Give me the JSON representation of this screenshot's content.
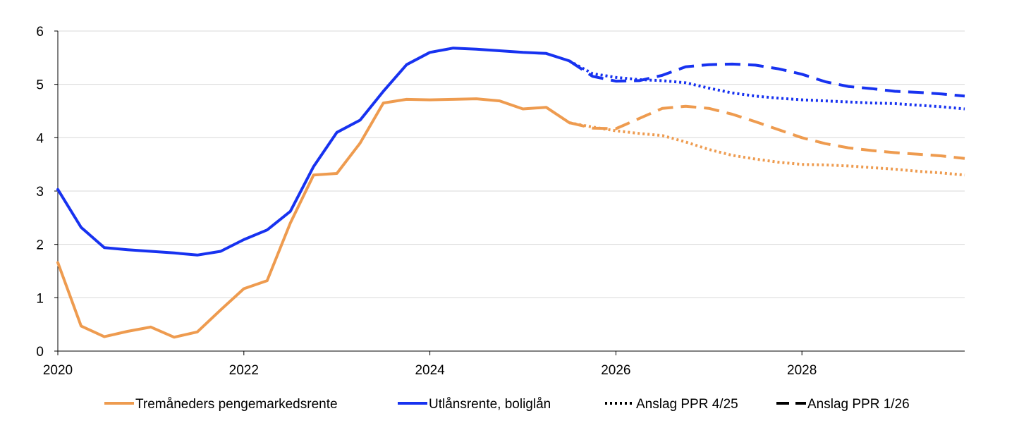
{
  "chart_data": {
    "type": "line",
    "title": "",
    "xlabel": "",
    "ylabel": "",
    "xlim": [
      2020,
      2029.75
    ],
    "ylim": [
      0,
      6
    ],
    "yticks": [
      0,
      1,
      2,
      3,
      4,
      5,
      6
    ],
    "xticks": [
      2020,
      2022,
      2024,
      2026,
      2028
    ],
    "grid": "horizontal",
    "legend_position": "bottom",
    "colors": {
      "orange": "#EE9B4F",
      "blue": "#1732F0",
      "black": "#000000"
    },
    "series": [
      {
        "name": "Tremåneders pengemarkedsrente",
        "color": "#EE9B4F",
        "style": "solid",
        "x": [
          2020.0,
          2020.25,
          2020.5,
          2020.75,
          2021.0,
          2021.25,
          2021.5,
          2021.75,
          2022.0,
          2022.25,
          2022.5,
          2022.75,
          2023.0,
          2023.25,
          2023.5,
          2023.75,
          2024.0,
          2024.25,
          2024.5,
          2024.75,
          2025.0,
          2025.25,
          2025.5
        ],
        "y": [
          1.66,
          0.47,
          0.27,
          0.37,
          0.45,
          0.26,
          0.36,
          0.77,
          1.17,
          1.32,
          2.4,
          3.3,
          3.33,
          3.9,
          4.65,
          4.72,
          4.71,
          4.72,
          4.73,
          4.69,
          4.54,
          4.57,
          4.28
        ]
      },
      {
        "name": "Utlånsrente, boliglån",
        "color": "#1732F0",
        "style": "solid",
        "x": [
          2020.0,
          2020.25,
          2020.5,
          2020.75,
          2021.0,
          2021.25,
          2021.5,
          2021.75,
          2022.0,
          2022.25,
          2022.5,
          2022.75,
          2023.0,
          2023.25,
          2023.5,
          2023.75,
          2024.0,
          2024.25,
          2024.5,
          2024.75,
          2025.0,
          2025.25,
          2025.5
        ],
        "y": [
          3.03,
          2.32,
          1.94,
          1.9,
          1.87,
          1.84,
          1.8,
          1.87,
          2.09,
          2.27,
          2.62,
          3.46,
          4.1,
          4.33,
          4.87,
          5.37,
          5.6,
          5.68,
          5.66,
          5.63,
          5.6,
          5.58,
          5.44
        ]
      },
      {
        "name": "Anslag PPR 4/25",
        "style": "dotted",
        "lines": [
          {
            "color": "#EE9B4F",
            "x": [
              2025.5,
              2025.75,
              2026.0,
              2026.25,
              2026.5,
              2026.75,
              2027.0,
              2027.25,
              2027.5,
              2027.75,
              2028.0,
              2028.25,
              2028.5,
              2028.75,
              2029.0,
              2029.25,
              2029.5,
              2029.75
            ],
            "y": [
              4.28,
              4.2,
              4.13,
              4.08,
              4.04,
              3.92,
              3.78,
              3.67,
              3.6,
              3.54,
              3.5,
              3.49,
              3.47,
              3.44,
              3.41,
              3.37,
              3.34,
              3.3
            ]
          },
          {
            "color": "#1732F0",
            "x": [
              2025.5,
              2025.75,
              2026.0,
              2026.25,
              2026.5,
              2026.75,
              2027.0,
              2027.25,
              2027.5,
              2027.75,
              2028.0,
              2028.25,
              2028.5,
              2028.75,
              2029.0,
              2029.25,
              2029.5,
              2029.75
            ],
            "y": [
              5.44,
              5.2,
              5.13,
              5.09,
              5.07,
              5.03,
              4.93,
              4.84,
              4.78,
              4.74,
              4.71,
              4.69,
              4.67,
              4.65,
              4.64,
              4.61,
              4.58,
              4.54
            ]
          }
        ]
      },
      {
        "name": "Anslag PPR 1/26",
        "style": "dashed",
        "lines": [
          {
            "color": "#EE9B4F",
            "x": [
              2025.5,
              2025.75,
              2026.0,
              2026.25,
              2026.5,
              2026.75,
              2027.0,
              2027.25,
              2027.5,
              2027.75,
              2028.0,
              2028.25,
              2028.5,
              2028.75,
              2029.0,
              2029.25,
              2029.5,
              2029.75
            ],
            "y": [
              4.28,
              4.18,
              4.17,
              4.36,
              4.55,
              4.59,
              4.55,
              4.44,
              4.3,
              4.15,
              4.0,
              3.89,
              3.81,
              3.76,
              3.72,
              3.69,
              3.66,
              3.61
            ]
          },
          {
            "color": "#1732F0",
            "x": [
              2025.5,
              2025.75,
              2026.0,
              2026.25,
              2026.5,
              2026.75,
              2027.0,
              2027.25,
              2027.5,
              2027.75,
              2028.0,
              2028.25,
              2028.5,
              2028.75,
              2029.0,
              2029.25,
              2029.5,
              2029.75
            ],
            "y": [
              5.44,
              5.15,
              5.06,
              5.07,
              5.17,
              5.33,
              5.37,
              5.38,
              5.36,
              5.29,
              5.19,
              5.05,
              4.96,
              4.92,
              4.87,
              4.85,
              4.82,
              4.78
            ]
          }
        ]
      }
    ]
  }
}
